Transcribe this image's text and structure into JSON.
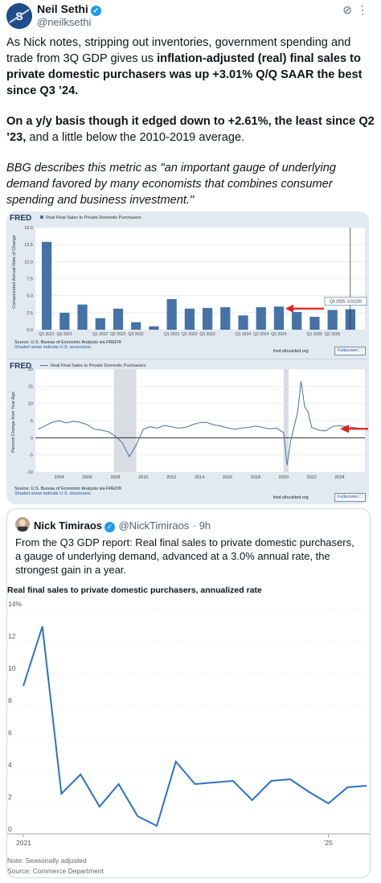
{
  "author": {
    "name": "Neil Sethi",
    "handle": "@neilksethi"
  },
  "tweet": {
    "p1a": "As Nick notes, stripping out inventories, government spending and trade from 3Q GDP gives us ",
    "p1b": "inflation-adjusted (real) final sales to private domestic purchasers was up +3.01% Q/Q SAAR the best since Q3 ’24.",
    "p2a": "On a y/y basis though it edged down to +2.61%, the least since Q2 ’23,",
    "p2b": " and a little below the 2010-2019 average.",
    "p3": "BBG describes this metric as \"an important gauge of underlying demand favored by many economists that combines consumer spending and business investment.\""
  },
  "fred1": {
    "logo": "FRED",
    "series": "Real Final Sales to Private Domestic Purchasers",
    "ylabel": "Compounded Annual Rate of Change",
    "source": "Source: U.S. Bureau of Economic Analysis via FRED®",
    "shaded": "Shaded areas indicate U.S. recessions.",
    "site": "fred.stlouisfed.org",
    "fullscreen": "Fullscreen ⛶",
    "tooltip": "Q3 2025: 3.01226",
    "chart_data": {
      "type": "bar",
      "categories": [
        "Q2 2021",
        "Q3 2021",
        "Q4 2021",
        "Q1 2022",
        "Q2 2022",
        "Q3 2022",
        "Q4 2022",
        "Q1 2023",
        "Q2 2023",
        "Q3 2023",
        "Q4 2023",
        "Q1 2024",
        "Q2 2024",
        "Q3 2024",
        "Q4 2024",
        "Q1 2025",
        "Q2 2025",
        "Q3 2025"
      ],
      "tick_labels": [
        "Q2 2021",
        "Q3 2021",
        "Q1 2022",
        "Q2 2022",
        "Q3 2022",
        "Q1 2023",
        "Q2 2023",
        "Q3 2023",
        "Q1 2024",
        "Q2 2024",
        "Q3 2024",
        "Q1 2025",
        "Q2 2025"
      ],
      "values": [
        12.9,
        2.5,
        3.7,
        1.7,
        3.1,
        1.1,
        0.5,
        4.5,
        3.1,
        3.2,
        3.3,
        2.1,
        3.3,
        3.4,
        2.6,
        1.9,
        2.9,
        3.01
      ],
      "yticks": [
        "0.0",
        "2.5",
        "5.0",
        "7.5",
        "10.0",
        "12.5",
        "15.0"
      ],
      "ylim": [
        0,
        15
      ]
    }
  },
  "fred2": {
    "logo": "FRED",
    "series": "Real Final Sales to Private Domestic Purchasers",
    "ylabel": "Percent Change from Year Ago",
    "source": "Source: U.S. Bureau of Economic Analysis via FRED®",
    "shaded": "Shaded areas indicate U.S. recessions.",
    "site": "fred.stlouisfed.org",
    "fullscreen": "Fullscreen ⛶",
    "chart_data": {
      "type": "line",
      "x": [
        2002.5,
        2003,
        2003.5,
        2004,
        2004.5,
        2005,
        2005.5,
        2006,
        2006.5,
        2007,
        2007.5,
        2008,
        2008.5,
        2009,
        2009.5,
        2010,
        2010.5,
        2011,
        2011.5,
        2012,
        2012.5,
        2013,
        2013.5,
        2014,
        2014.5,
        2015,
        2015.5,
        2016,
        2016.5,
        2017,
        2017.5,
        2018,
        2018.5,
        2019,
        2019.5,
        2020,
        2020.25,
        2020.5,
        2021,
        2021.25,
        2021.5,
        2021.75,
        2022,
        2022.5,
        2023,
        2023.5,
        2024,
        2024.5,
        2025,
        2025.5
      ],
      "values": [
        2.5,
        3.5,
        4.5,
        5,
        4.3,
        4.8,
        4.5,
        3.8,
        2.5,
        2.2,
        1.8,
        0.5,
        -1.5,
        -5.5,
        -2,
        2.5,
        3.2,
        2.8,
        3.6,
        3.2,
        2.8,
        3,
        3.8,
        4.4,
        4.5,
        3.8,
        3.4,
        2.9,
        2.5,
        2.8,
        3,
        3.4,
        3,
        2.6,
        2.8,
        1.5,
        -8,
        -1,
        7.5,
        16.5,
        9,
        7.5,
        3,
        2.2,
        2,
        3.3,
        3.5,
        3.2,
        3,
        2.61
      ],
      "xticks": [
        "2004",
        "2006",
        "2008",
        "2010",
        "2012",
        "2014",
        "2016",
        "2018",
        "2020",
        "2022",
        "2024"
      ],
      "yticks": [
        "-10",
        "-5",
        "0",
        "5",
        "10",
        "15",
        "20"
      ],
      "ylim": [
        -10,
        20
      ],
      "recessions": [
        [
          2007.9,
          2009.5
        ],
        [
          2020.0,
          2020.35
        ]
      ]
    }
  },
  "quote": {
    "name": "Nick Timiraos",
    "handle": "@NickTimiraos",
    "time": "· 9h",
    "text": "From the Q3 GDP report: Real final sales to private domestic purchasers, a gauge of underlying demand, advanced at a 3.0% annual rate, the strongest gain in a year.",
    "chart": {
      "title": "Real final sales to private domestic purchasers, annualized rate",
      "note": "Note: Seasonally adjusted",
      "source": "Source: Commerce Department",
      "chart_data": {
        "type": "line",
        "x": [
          "2021 Q1",
          "2021 Q2",
          "2021 Q3",
          "2021 Q4",
          "2022 Q1",
          "2022 Q2",
          "2022 Q3",
          "2022 Q4",
          "2023 Q1",
          "2023 Q2",
          "2023 Q3",
          "2023 Q4",
          "2024 Q1",
          "2024 Q2",
          "2024 Q3",
          "2024 Q4",
          "2025 Q1",
          "2025 Q2",
          "2025 Q3"
        ],
        "values": [
          9.2,
          12.9,
          2.5,
          3.7,
          1.7,
          3.1,
          1.1,
          0.5,
          4.5,
          3.1,
          3.2,
          3.3,
          2.1,
          3.3,
          3.4,
          2.6,
          1.9,
          2.9,
          3.0
        ],
        "yticks": [
          "0",
          "2",
          "4",
          "6",
          "8",
          "10",
          "12",
          "14%"
        ],
        "xticks": [
          "2021",
          "’25"
        ],
        "ylim": [
          0,
          14
        ]
      }
    }
  }
}
